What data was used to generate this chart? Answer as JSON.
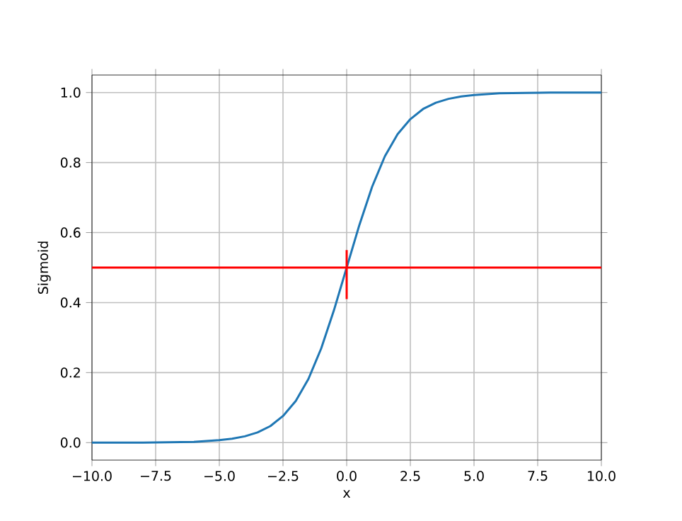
{
  "chart_data": {
    "type": "line",
    "xlabel": "x",
    "ylabel": "Sigmoid",
    "xlim": [
      -10,
      10
    ],
    "ylim": [
      -0.05,
      1.05
    ],
    "xticks": [
      {
        "value": -10,
        "label": "−10.0"
      },
      {
        "value": -7.5,
        "label": "−7.5"
      },
      {
        "value": -5,
        "label": "−5.0"
      },
      {
        "value": -2.5,
        "label": "−2.5"
      },
      {
        "value": 0,
        "label": "0.0"
      },
      {
        "value": 2.5,
        "label": "2.5"
      },
      {
        "value": 5,
        "label": "5.0"
      },
      {
        "value": 7.5,
        "label": "7.5"
      },
      {
        "value": 10,
        "label": "10.0"
      }
    ],
    "yticks": [
      {
        "value": 0,
        "label": "0.0"
      },
      {
        "value": 0.2,
        "label": "0.2"
      },
      {
        "value": 0.4,
        "label": "0.4"
      },
      {
        "value": 0.6,
        "label": "0.6"
      },
      {
        "value": 0.8,
        "label": "0.8"
      },
      {
        "value": 1,
        "label": "1.0"
      }
    ],
    "grid": true,
    "series": [
      {
        "color": "#1f77b4",
        "x": [
          -10,
          -9,
          -8,
          -7,
          -6,
          -5,
          -4.5,
          -4,
          -3.5,
          -3,
          -2.5,
          -2,
          -1.5,
          -1,
          -0.5,
          0,
          0.5,
          1,
          1.5,
          2,
          2.5,
          3,
          3.5,
          4,
          4.5,
          5,
          6,
          7,
          8,
          9,
          10
        ],
        "values": [
          0.0,
          0.0,
          0.0,
          0.001,
          0.002,
          0.007,
          0.011,
          0.018,
          0.029,
          0.047,
          0.076,
          0.119,
          0.182,
          0.269,
          0.378,
          0.5,
          0.622,
          0.731,
          0.818,
          0.881,
          0.924,
          0.953,
          0.971,
          0.982,
          0.989,
          0.993,
          0.998,
          0.999,
          1.0,
          1.0,
          1.0
        ]
      },
      {
        "color": "#ff0000",
        "x": [
          0,
          0
        ],
        "values": [
          0.41,
          0.55
        ]
      }
    ],
    "ref_lines": [
      {
        "axis": "y",
        "value": 0.5,
        "color": "#ff0000"
      }
    ]
  }
}
